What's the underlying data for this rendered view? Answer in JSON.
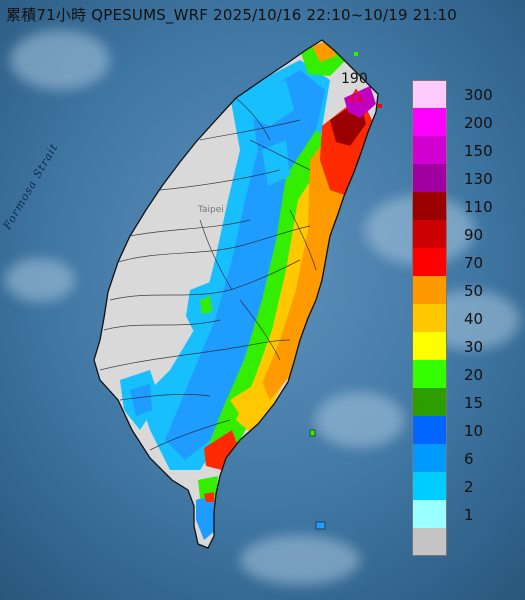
{
  "title": "累積71小時 QPESUMS_WRF 2025/10/16 22:10~10/19 21:10",
  "strait_label": "Formosa Strait",
  "max_marker": {
    "label": "190",
    "color": "#ff0000"
  },
  "legend": [
    {
      "label": "300",
      "color": "#fecbfe"
    },
    {
      "label": "200",
      "color": "#fe00fe"
    },
    {
      "label": "150",
      "color": "#d000d0"
    },
    {
      "label": "130",
      "color": "#a000a0"
    },
    {
      "label": "110",
      "color": "#9a0000"
    },
    {
      "label": "90",
      "color": "#cc0000"
    },
    {
      "label": "70",
      "color": "#fe0000"
    },
    {
      "label": "50",
      "color": "#fe9900"
    },
    {
      "label": "40",
      "color": "#fec800"
    },
    {
      "label": "30",
      "color": "#fefe00"
    },
    {
      "label": "20",
      "color": "#33ff00"
    },
    {
      "label": "15",
      "color": "#2d9d00"
    },
    {
      "label": "10",
      "color": "#0066ff"
    },
    {
      "label": "6",
      "color": "#0099ff"
    },
    {
      "label": "2",
      "color": "#00ccff"
    },
    {
      "label": "1",
      "color": "#99ffff"
    },
    {
      "label": "",
      "color": "#c4c4c4"
    }
  ],
  "colors": {
    "sea": "#2f5f86",
    "terrain": "#d8d8d8",
    "coast": "#111111",
    "rivers": "#222222"
  }
}
